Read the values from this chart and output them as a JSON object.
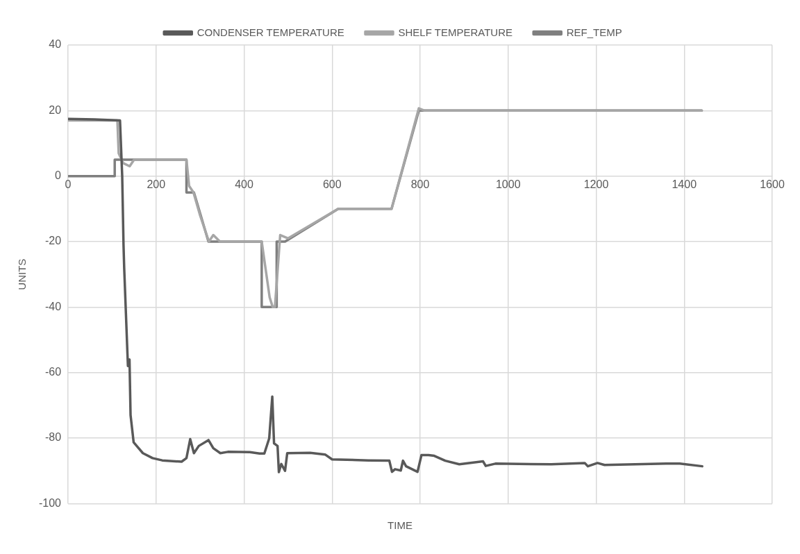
{
  "chart_data": {
    "type": "line",
    "xlabel": "TIME",
    "ylabel": "UNITS",
    "xlim": [
      0,
      1600
    ],
    "xticks": [
      0,
      200,
      400,
      600,
      800,
      1000,
      1200,
      1400,
      1600
    ],
    "ylim": [
      -100,
      40
    ],
    "yticks": [
      -100,
      -80,
      -60,
      -40,
      -20,
      0,
      20,
      40
    ],
    "grid": true,
    "legend": "top",
    "marker": "none",
    "line_style": "solid",
    "series": [
      {
        "name": "CONDENSER TEMPERATURE",
        "color": "#595959",
        "x": [
          0,
          60,
          118,
          123,
          126,
          127.5,
          136,
          139.6,
          142,
          149,
          156,
          170,
          192,
          214,
          258,
          269,
          277.5,
          286,
          297,
          319,
          330,
          346,
          363,
          413,
          435,
          446,
          457,
          464,
          468,
          476,
          479,
          484.5,
          493,
          498,
          550,
          584,
          600,
          683,
          730,
          736,
          743,
          756,
          761,
          768,
          794,
          803,
          819,
          832,
          857,
          889,
          943,
          949,
          971,
          1098,
          1174,
          1181,
          1203,
          1219,
          1359,
          1390,
          1441
        ],
        "values": [
          17.5,
          17.3,
          17,
          0,
          -21,
          -28,
          -58,
          -56,
          -73,
          -81.3,
          -82.4,
          -84.6,
          -86.1,
          -86.8,
          -87.2,
          -86.1,
          -80.3,
          -84.6,
          -82.4,
          -80.6,
          -83.1,
          -84.6,
          -84.2,
          -84.3,
          -84.7,
          -84.7,
          -80.1,
          -67.3,
          -81.6,
          -82.4,
          -90.4,
          -87.9,
          -90,
          -84.6,
          -84.5,
          -85,
          -86.5,
          -86.8,
          -86.9,
          -90.3,
          -89.5,
          -89.9,
          -86.9,
          -88.6,
          -90.3,
          -85.2,
          -85.2,
          -85.4,
          -86.9,
          -88,
          -87.1,
          -88.5,
          -87.8,
          -88,
          -87.6,
          -88.6,
          -87.6,
          -88.2,
          -87.8,
          -87.8,
          -88.6
        ]
      },
      {
        "name": "SHELF TEMPERATURE",
        "color": "#a6a6a6",
        "x": [
          0,
          112,
          115,
          125,
          140,
          150,
          269,
          275,
          285,
          300,
          320,
          330,
          345,
          440,
          458,
          465,
          470,
          482,
          500,
          614,
          735,
          797,
          810,
          1440
        ],
        "values": [
          17,
          17,
          7,
          4,
          3,
          5,
          5,
          -3,
          -5,
          -12,
          -20,
          -18,
          -20,
          -20,
          -37,
          -40,
          -40,
          -18,
          -19,
          -10,
          -10,
          20.7,
          20,
          20
        ]
      },
      {
        "name": "REF_TEMP",
        "color": "#7f7f7f",
        "x": [
          0,
          106,
          106,
          269,
          269,
          286,
          319,
          440,
          440,
          474,
          474,
          493,
          614,
          735,
          797,
          1440
        ],
        "values": [
          0,
          0,
          5,
          5,
          -5,
          -5,
          -20,
          -20,
          -40,
          -40,
          -20,
          -20,
          -10,
          -10,
          20,
          20
        ]
      }
    ]
  }
}
